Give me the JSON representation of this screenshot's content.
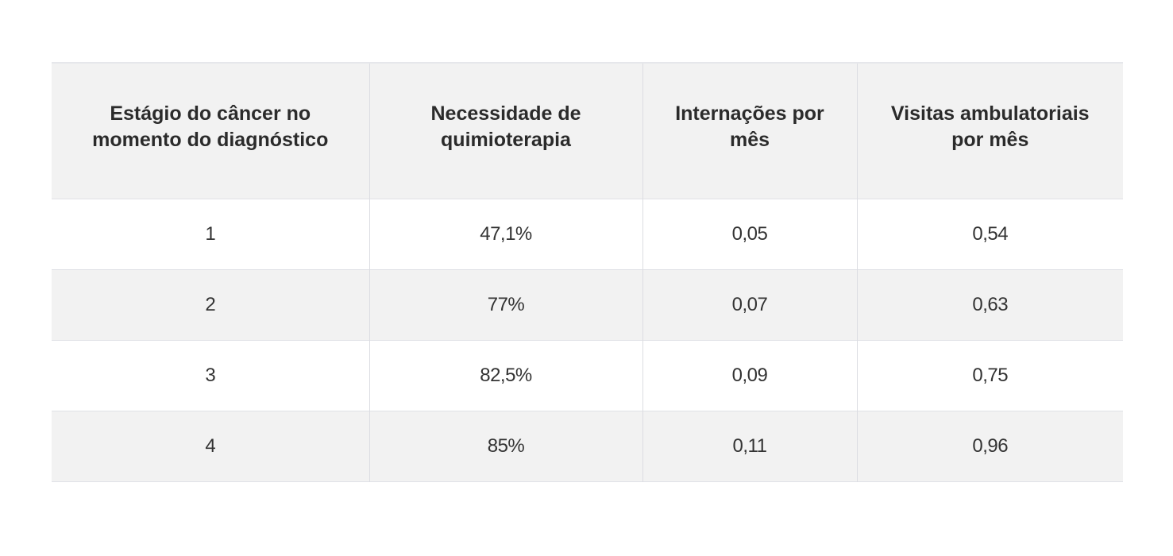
{
  "table": {
    "headers": [
      "Estágio do câncer no momento do diagnóstico",
      "Necessidade de quimioterapia",
      "Internações por mês",
      "Visitas ambulatoriais por mês"
    ],
    "rows": [
      [
        "1",
        "47,1%",
        "0,05",
        "0,54"
      ],
      [
        "2",
        "77%",
        "0,07",
        "0,63"
      ],
      [
        "3",
        "82,5%",
        "0,09",
        "0,75"
      ],
      [
        "4",
        "85%",
        "0,11",
        "0,96"
      ]
    ]
  },
  "colors": {
    "header_bg": "#f2f2f2",
    "stripe_bg": "#f2f2f2",
    "row_bg": "#ffffff",
    "border": "#dcdde2",
    "text": "#2e2e2e"
  }
}
